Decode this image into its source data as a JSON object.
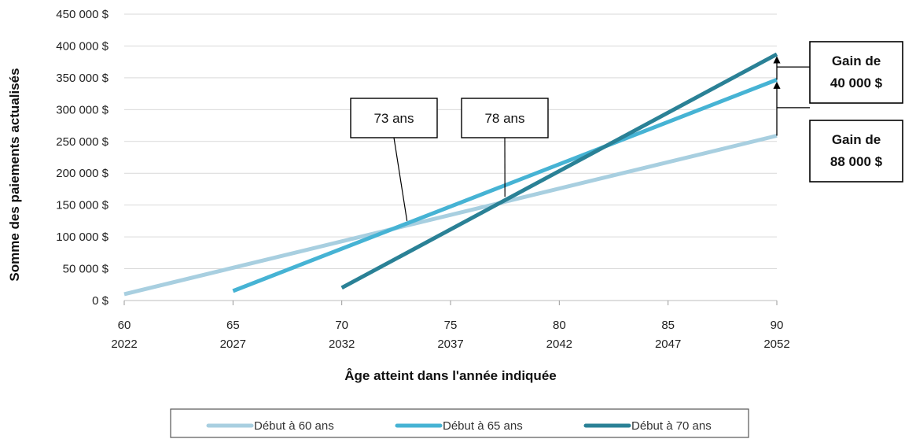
{
  "chart_data": {
    "type": "line",
    "ylabel": "Somme des paiements actualisés",
    "xlabel": "Âge atteint dans l'année indiquée",
    "ylim": [
      0,
      450000
    ],
    "xlim": [
      60,
      90
    ],
    "y_ticks": [
      "0 $",
      "50 000 $",
      "100 000 $",
      "150 000 $",
      "200 000 $",
      "250 000 $",
      "300 000 $",
      "350 000 $",
      "400 000 $",
      "450 000 $"
    ],
    "x_ticks": [
      {
        "age": 60,
        "age_label": "60",
        "year_label": "2022"
      },
      {
        "age": 65,
        "age_label": "65",
        "year_label": "2027"
      },
      {
        "age": 70,
        "age_label": "70",
        "year_label": "2032"
      },
      {
        "age": 75,
        "age_label": "75",
        "year_label": "2037"
      },
      {
        "age": 80,
        "age_label": "80",
        "year_label": "2042"
      },
      {
        "age": 85,
        "age_label": "85",
        "year_label": "2047"
      },
      {
        "age": 90,
        "age_label": "90",
        "year_label": "2052"
      }
    ],
    "grid": "horizontal",
    "legend_position": "bottom",
    "series": [
      {
        "name": "Début à 60 ans",
        "color": "#a8cfe0",
        "x": [
          60,
          90
        ],
        "y": [
          10000,
          259000
        ]
      },
      {
        "name": "Début à 65 ans",
        "color": "#46b3d4",
        "x": [
          65,
          90
        ],
        "y": [
          15000,
          347000
        ]
      },
      {
        "name": "Début à 70 ans",
        "color": "#2a8196",
        "x": [
          70,
          90
        ],
        "y": [
          20000,
          387000
        ]
      }
    ],
    "annotations": {
      "crossover_73": {
        "label": "73 ans",
        "x": 73,
        "y": 125000
      },
      "crossover_78": {
        "label": "78 ans",
        "x": 77.5,
        "y": 163000
      },
      "gain_40": {
        "line1": "Gain de",
        "line2": "40 000 $",
        "from_y": 347000,
        "to_y": 387000
      },
      "gain_88": {
        "line1": "Gain de",
        "line2": "88 000 $",
        "from_y": 259000,
        "to_y": 347000
      }
    }
  }
}
